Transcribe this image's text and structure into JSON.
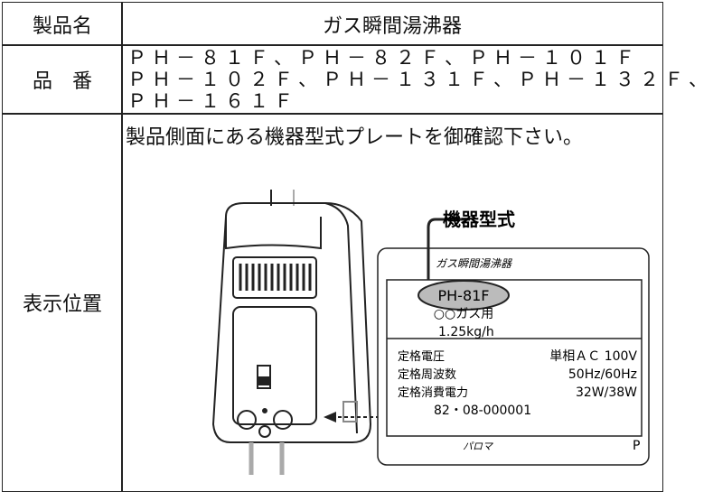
{
  "rows": [
    {
      "header": "製品名",
      "content": "ガス瞬間湯沸器"
    },
    {
      "header": "品　番",
      "lines": [
        "ＰＨ－８１Ｆ、ＰＨ－８２Ｆ、ＰＨ－１０１Ｆ",
        "ＰＨ－１０２Ｆ、ＰＨ－１３１Ｆ、ＰＨ－１３２Ｆ、",
        "ＰＨ－１６１Ｆ"
      ]
    },
    {
      "header": "表示位置",
      "content": "製品側面にある機器型式プレートを御確認下さい。",
      "figure": {
        "callout": "機器型式",
        "plate": {
          "title": "ガス瞬間湯沸器",
          "model": "PH-81F",
          "gas": "○○ガス用",
          "consumption": "1.25kg/h",
          "specs": [
            {
              "label": "定格電圧",
              "value": "単相ＡＣ 100V"
            },
            {
              "label": "定格周波数",
              "value": "50Hz/60Hz"
            },
            {
              "label": "定格消費電力",
              "value": "32W/38W"
            }
          ],
          "serial": "82・08-000001",
          "maker": "パロマ",
          "mark": "P"
        }
      }
    }
  ]
}
